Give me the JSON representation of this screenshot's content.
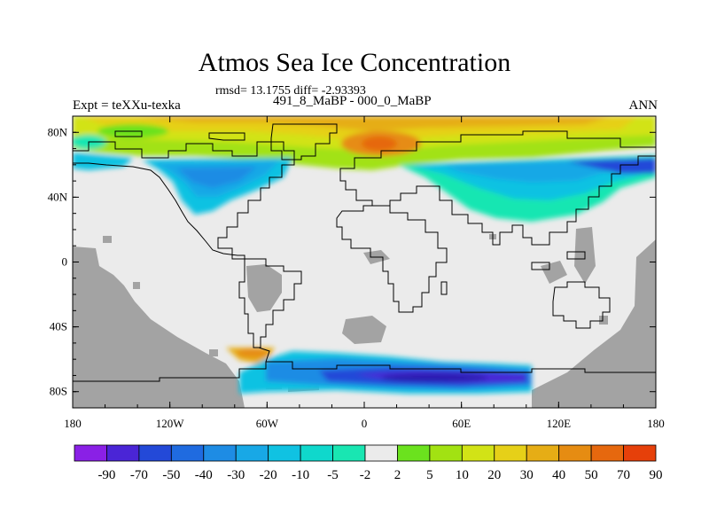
{
  "title": "Atmos Sea Ice Concentration",
  "stats": "rmsd= 13.1755 diff= -2.93393",
  "experiment_label": "Expt = teXXu-texka",
  "subtitle": "491_8_MaBP - 000_0_MaBP",
  "season": "ANN",
  "colors": {
    "land": "#a3a3a3",
    "ocean_neutral": "#ebebeb",
    "coast": "#000000"
  },
  "chart_data": {
    "type": "heatmap",
    "title": "Atmos Sea Ice Concentration",
    "projection": "cylindrical-equidistant",
    "x_axis": {
      "range": [
        -180,
        180
      ],
      "ticks": [
        -180,
        -120,
        -60,
        0,
        60,
        120,
        180
      ],
      "tick_labels": [
        "180",
        "120W",
        "60W",
        "0",
        "60E",
        "120E",
        "180"
      ]
    },
    "y_axis": {
      "range": [
        -90,
        90
      ],
      "ticks": [
        80,
        40,
        0,
        -40,
        -80
      ],
      "tick_labels": [
        "80N",
        "40N",
        "0",
        "40S",
        "80S"
      ]
    },
    "colorbar": {
      "labels": [
        "-90",
        "-70",
        "-50",
        "-40",
        "-30",
        "-20",
        "-10",
        "-5",
        "-2",
        "2",
        "5",
        "10",
        "20",
        "30",
        "40",
        "50",
        "70",
        "90"
      ],
      "colors": [
        "#8a20e6",
        "#4a25d6",
        "#2349d8",
        "#1f6be0",
        "#1e8ce4",
        "#18a8e6",
        "#10c2e2",
        "#0fd8cc",
        "#19e6b2",
        "#ebebeb",
        "#6be21e",
        "#a2e212",
        "#d2e316",
        "#e6d018",
        "#e6ad15",
        "#e68c12",
        "#e6680e",
        "#e6400a"
      ]
    },
    "regions": [
      {
        "name": "Arctic band",
        "value": 30
      },
      {
        "name": "Arctic core near 0-20E",
        "value": 70
      },
      {
        "name": "North America high latitudes",
        "value": -30
      },
      {
        "name": "North Pacific/Siberia high latitudes",
        "value": -20
      },
      {
        "name": "Antarctic margin",
        "value": -50
      },
      {
        "name": "Antarctic core near 40-100E",
        "value": -70
      },
      {
        "name": "Antarctic Peninsula",
        "value": 30
      }
    ]
  }
}
